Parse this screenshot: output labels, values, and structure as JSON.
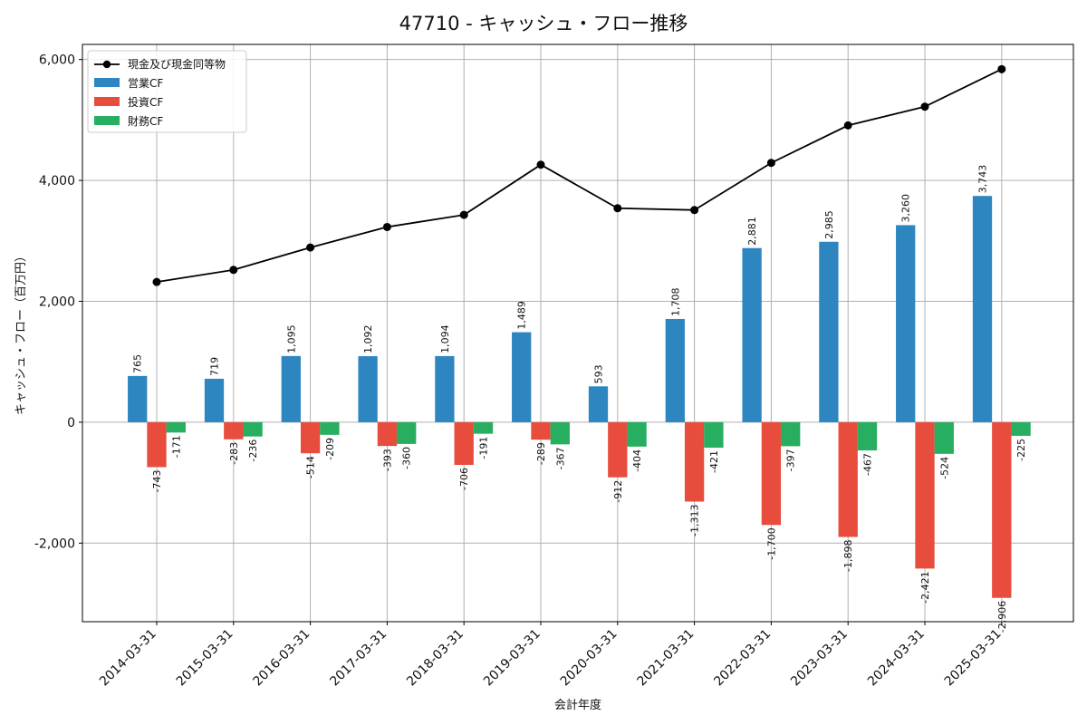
{
  "chart_data": {
    "type": "bar",
    "title": "47710 - キャッシュ・フロー推移",
    "xlabel": "会計年度",
    "ylabel": "キャッシュ・フロー（百万円）",
    "ylim": [
      -3300,
      6250
    ],
    "yticks": [
      -2000,
      0,
      2000,
      4000,
      6000
    ],
    "ytick_labels": [
      "-2,000",
      "0",
      "2,000",
      "4,000",
      "6,000"
    ],
    "grid": true,
    "legend_position": "top-left",
    "categories": [
      "2014-03-31",
      "2015-03-31",
      "2016-03-31",
      "2017-03-31",
      "2018-03-31",
      "2019-03-31",
      "2020-03-31",
      "2021-03-31",
      "2022-03-31",
      "2023-03-31",
      "2024-03-31",
      "2025-03-31"
    ],
    "series": [
      {
        "name": "営業CF",
        "kind": "bar",
        "color": "#2e86c1",
        "values": [
          765,
          719,
          1095,
          1092,
          1094,
          1489,
          593,
          1708,
          2881,
          2985,
          3260,
          3743
        ],
        "labels": [
          "765",
          "719",
          "1,095",
          "1,092",
          "1,094",
          "1,489",
          "593",
          "1,708",
          "2,881",
          "2,985",
          "3,260",
          "3,743"
        ]
      },
      {
        "name": "投資CF",
        "kind": "bar",
        "color": "#e74c3c",
        "values": [
          -743,
          -283,
          -514,
          -393,
          -706,
          -289,
          -912,
          -1313,
          -1700,
          -1898,
          -2421,
          -2906
        ],
        "labels": [
          "-743",
          "-283",
          "-514",
          "-393",
          "-706",
          "-289",
          "-912",
          "-1,313",
          "-1,700",
          "-1,898",
          "-2,421",
          "-2,906"
        ]
      },
      {
        "name": "財務CF",
        "kind": "bar",
        "color": "#27ae60",
        "values": [
          -171,
          -236,
          -209,
          -360,
          -191,
          -367,
          -404,
          -421,
          -397,
          -467,
          -524,
          -225
        ],
        "labels": [
          "-171",
          "-236",
          "-209",
          "-360",
          "-191",
          "-367",
          "-404",
          "-421",
          "-397",
          "-467",
          "-524",
          "-225"
        ]
      },
      {
        "name": "現金及び現金同等物",
        "kind": "line",
        "color": "#000000",
        "values": [
          2320,
          2520,
          2890,
          3230,
          3430,
          4260,
          3540,
          3510,
          4290,
          4910,
          5220,
          5840
        ]
      }
    ]
  }
}
